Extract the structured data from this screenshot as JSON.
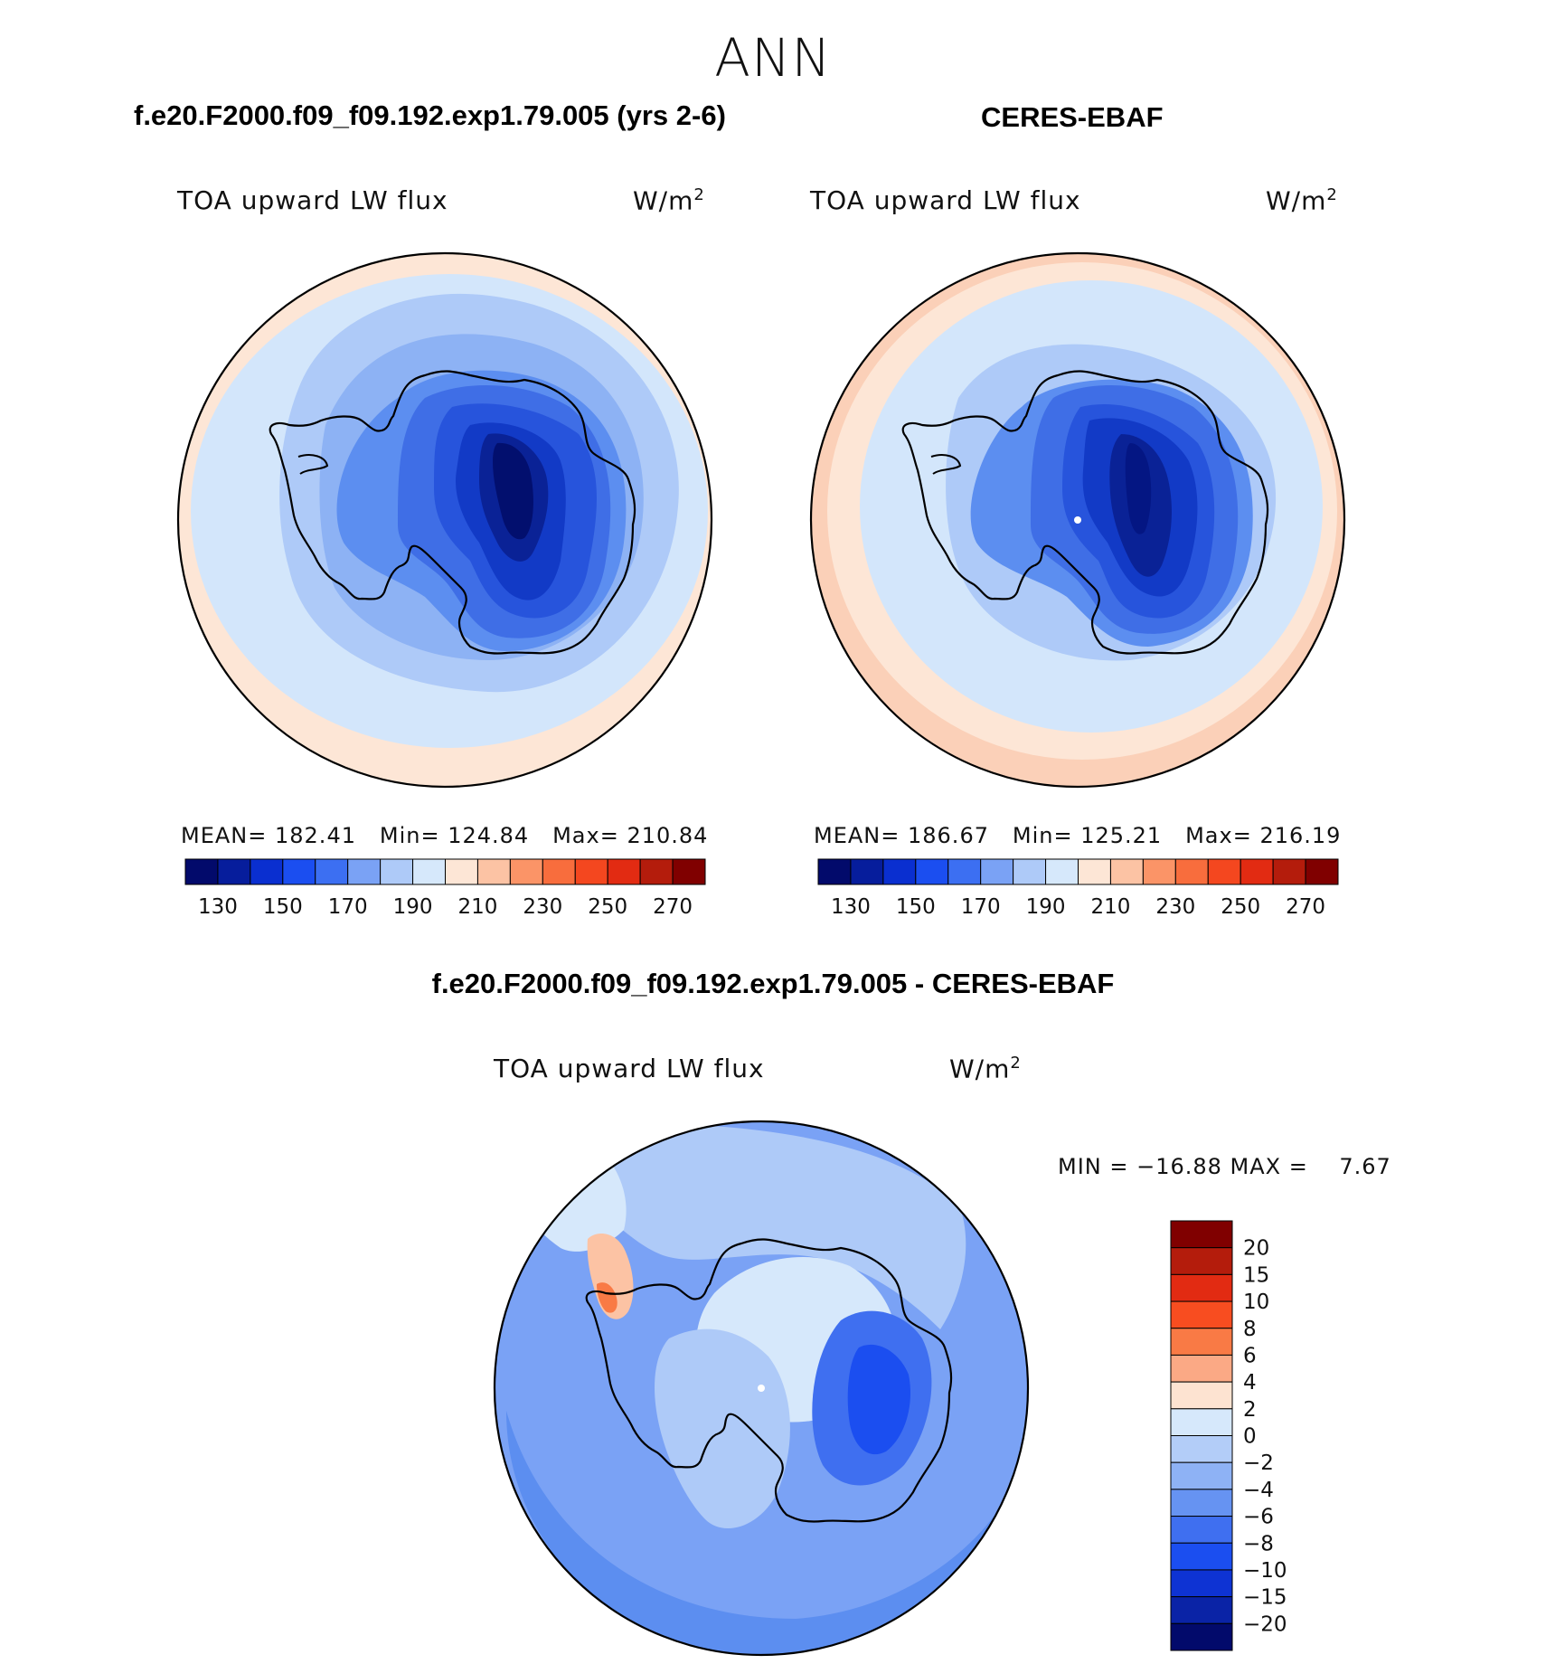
{
  "season": "ANN",
  "panels": [
    {
      "title": "f.e20.F2000.f09_f09.192.exp1.79.005 (yrs 2-6)",
      "variable": "TOA upward LW flux",
      "units": "W/m",
      "units_sup": "2",
      "stats": {
        "mean_label": "MEAN=",
        "mean": "182.41",
        "min_label": "Min=",
        "min": "124.84",
        "max_label": "Max=",
        "max": "210.84"
      },
      "fill": {
        "ocean_outer": "#fde6d6",
        "ocean": "#d3e6fb",
        "ring1": "#aecaf8",
        "ring2": "#8db2f4",
        "coast": "#5c8ef0",
        "inner1": "#3f6ee6",
        "inner2": "#2754dc",
        "inner3": "#123ac6",
        "core": "#0a2296",
        "center": "#020f6e"
      }
    },
    {
      "title": "CERES-EBAF",
      "variable": "TOA upward LW flux",
      "units": "W/m",
      "units_sup": "2",
      "stats": {
        "mean_label": "MEAN=",
        "mean": "186.67",
        "min_label": "Min=",
        "min": "125.21",
        "max_label": "Max=",
        "max": "216.19"
      },
      "fill": {
        "ocean_outer": "#fbd0b8",
        "ocean": "#d3e6fb",
        "ring1": "#d3e6fb",
        "ring2": "#aecaf8",
        "coast": "#5c8ef0",
        "inner1": "#3f6ee6",
        "inner2": "#2754dc",
        "inner3": "#123ac6",
        "core": "#0a2296",
        "center": "#041683"
      }
    }
  ],
  "colorbar": {
    "colors": [
      "#020a6b",
      "#061d9c",
      "#0a2fd0",
      "#1b4ef0",
      "#3c6ff2",
      "#7aa2f5",
      "#aecaf8",
      "#d6e8fb",
      "#fde6d6",
      "#fcc3a4",
      "#fb9467",
      "#f86d3d",
      "#f4471f",
      "#e22b12",
      "#b41c0c",
      "#800000"
    ],
    "tick_labels": [
      "130",
      "150",
      "170",
      "190",
      "210",
      "230",
      "250",
      "270"
    ]
  },
  "diff": {
    "title": "f.e20.F2000.f09_f09.192.exp1.79.005 - CERES-EBAF",
    "variable": "TOA upward LW flux",
    "units": "W/m",
    "units_sup": "2",
    "minmax": "MIN = −16.88 MAX =    7.67",
    "colorbar": {
      "colors": [
        "#800000",
        "#b41c0c",
        "#e22b12",
        "#f84d20",
        "#f97a45",
        "#fba985",
        "#fde3d1",
        "#d6e8fb",
        "#b3cdf8",
        "#8eb2f5",
        "#6693f2",
        "#3f6ff0",
        "#1b4ef0",
        "#0e33d3",
        "#0a23a6",
        "#020a6b"
      ],
      "labels": [
        "20",
        "15",
        "10",
        "8",
        "6",
        "4",
        "2",
        "0",
        "−2",
        "−4",
        "−6",
        "−8",
        "−10",
        "−15",
        "−20"
      ]
    },
    "fill": {
      "base": "#7aa2f5",
      "outer": "#5c8ef0",
      "pos": "#fcc3a4",
      "pos2": "#f97a45",
      "light": "#d6e8fb",
      "mid": "#aecaf8"
    }
  }
}
